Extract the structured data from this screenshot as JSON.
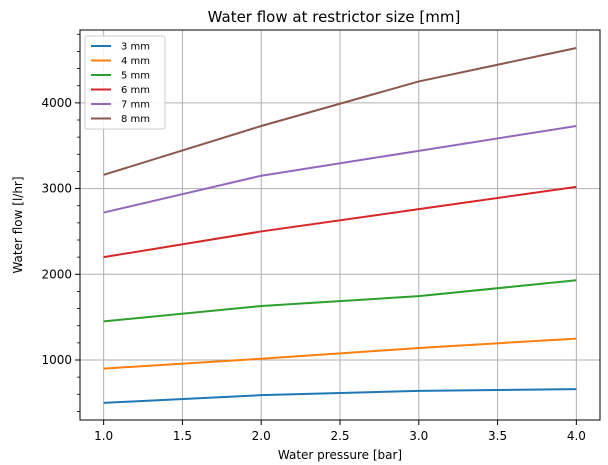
{
  "chart_data": {
    "type": "line",
    "title": "Water flow at restrictor size [mm]",
    "xlabel": "Water pressure [bar]",
    "ylabel": "Water flow [l/hr]",
    "x": [
      1.0,
      2.0,
      3.0,
      4.0
    ],
    "xlim": [
      0.85,
      4.15
    ],
    "ylim": [
      300,
      4850
    ],
    "xticks": [
      {
        "value": 1.0,
        "label": "1.0"
      },
      {
        "value": 1.5,
        "label": "1.5"
      },
      {
        "value": 2.0,
        "label": "2.0"
      },
      {
        "value": 2.5,
        "label": "2.5"
      },
      {
        "value": 3.0,
        "label": "3.0"
      },
      {
        "value": 3.5,
        "label": "3.5"
      },
      {
        "value": 4.0,
        "label": "4.0"
      }
    ],
    "yticks": [
      {
        "value": 1000,
        "label": "1000"
      },
      {
        "value": 2000,
        "label": "2000"
      },
      {
        "value": 3000,
        "label": "3000"
      },
      {
        "value": 4000,
        "label": "4000"
      }
    ],
    "grid": true,
    "legend_position": "top-left",
    "series": [
      {
        "name": "3 mm",
        "color": "#1f77b4",
        "values": [
          500,
          590,
          640,
          660
        ]
      },
      {
        "name": "4 mm",
        "color": "#ff7f0e",
        "values": [
          900,
          1015,
          1140,
          1250
        ]
      },
      {
        "name": "5 mm",
        "color": "#2ca02c",
        "values": [
          1450,
          1630,
          1745,
          1930
        ]
      },
      {
        "name": "6 mm",
        "color": "#d62728",
        "values": [
          2200,
          2500,
          2760,
          3020
        ]
      },
      {
        "name": "7 mm",
        "color": "#9467bd",
        "values": [
          2720,
          3150,
          3440,
          3730
        ]
      },
      {
        "name": "8 mm",
        "color": "#8c564b",
        "values": [
          3160,
          3730,
          4250,
          4640
        ]
      }
    ]
  }
}
